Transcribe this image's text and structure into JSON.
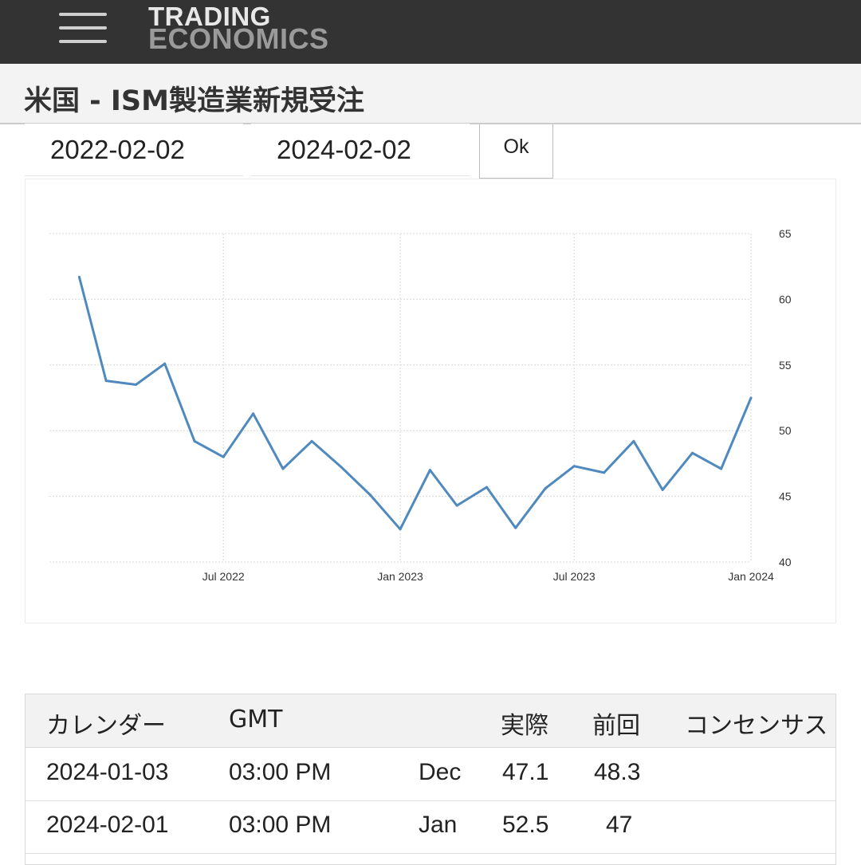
{
  "header": {
    "logo_line1": "TRADING",
    "logo_line2": "ECONOMICS"
  },
  "page": {
    "title": "米国 - ISM製造業新規受注"
  },
  "date_range": {
    "start": "2022-02-02",
    "end": "2024-02-02",
    "ok_label": "Ok"
  },
  "chart_data": {
    "type": "line",
    "series": [
      {
        "values": [
          [
            "2022-02-01",
            61.7
          ],
          [
            "2022-03-01",
            53.8
          ],
          [
            "2022-04-01",
            53.5
          ],
          [
            "2022-05-01",
            55.1
          ],
          [
            "2022-06-01",
            49.2
          ],
          [
            "2022-07-01",
            48.0
          ],
          [
            "2022-08-01",
            51.3
          ],
          [
            "2022-09-01",
            47.1
          ],
          [
            "2022-10-01",
            49.2
          ],
          [
            "2022-11-01",
            47.2
          ],
          [
            "2022-12-01",
            45.1
          ],
          [
            "2023-01-01",
            42.5
          ],
          [
            "2023-02-01",
            47.0
          ],
          [
            "2023-03-01",
            44.3
          ],
          [
            "2023-04-01",
            45.7
          ],
          [
            "2023-05-01",
            42.6
          ],
          [
            "2023-06-01",
            45.6
          ],
          [
            "2023-07-01",
            47.3
          ],
          [
            "2023-08-01",
            46.8
          ],
          [
            "2023-09-01",
            49.2
          ],
          [
            "2023-10-01",
            45.5
          ],
          [
            "2023-11-01",
            48.3
          ],
          [
            "2023-12-01",
            47.1
          ],
          [
            "2024-01-01",
            52.5
          ]
        ],
        "color": "#4f89bd"
      }
    ],
    "x_ticks": [
      "Jul 2022",
      "Jan 2023",
      "Jul 2023",
      "Jan 2024"
    ],
    "y_ticks": [
      40,
      45,
      50,
      55,
      60,
      65
    ],
    "ylim": [
      40,
      65
    ],
    "xlim": [
      "2022-01-01",
      "2024-01-01"
    ],
    "grid": true,
    "y_axis_side": "right"
  },
  "calendar": {
    "headers": [
      "カレンダー",
      "GMT",
      "",
      "実際",
      "前回",
      "コンセンサス"
    ],
    "rows": [
      [
        "2024-01-03",
        "03:00 PM",
        "Dec",
        "47.1",
        "48.3",
        ""
      ],
      [
        "2024-02-01",
        "03:00 PM",
        "Jan",
        "52.5",
        "47",
        ""
      ]
    ]
  }
}
